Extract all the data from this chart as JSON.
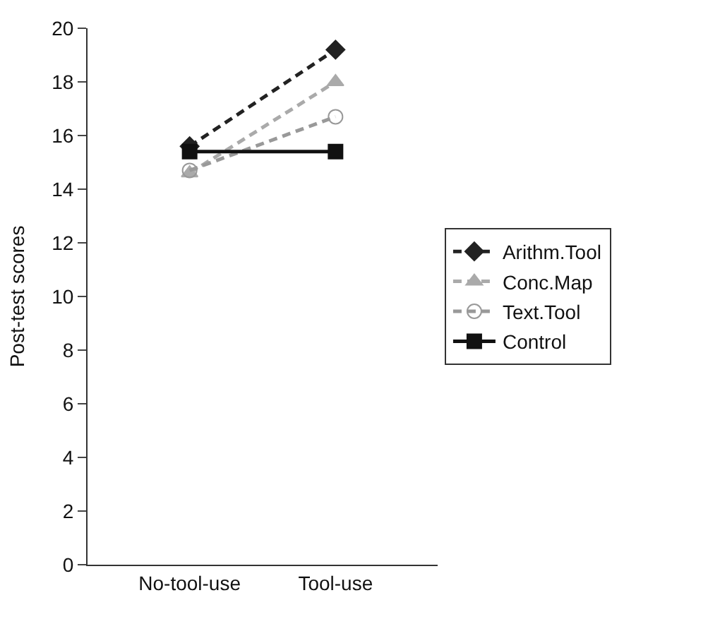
{
  "chart_data": {
    "type": "line",
    "ylabel": "Post-test scores",
    "categories": [
      "No-tool-use",
      "Tool-use"
    ],
    "ylim": [
      0,
      20
    ],
    "yticks": [
      0,
      2,
      4,
      6,
      8,
      10,
      12,
      14,
      16,
      18,
      20
    ],
    "legend": "right",
    "series": [
      {
        "name": "Arithm.Tool",
        "color": "#222222",
        "values": [
          15.6,
          19.2
        ],
        "marker": "diamond",
        "line_style": "dashed"
      },
      {
        "name": "Conc.Map",
        "color": "#aaaaaa",
        "values": [
          14.6,
          18.0
        ],
        "marker": "triangle",
        "line_style": "dashed"
      },
      {
        "name": "Text.Tool",
        "color": "#999999",
        "values": [
          14.7,
          16.7
        ],
        "marker": "circle",
        "line_style": "dashed"
      },
      {
        "name": "Control",
        "color": "#111111",
        "values": [
          15.4,
          15.4
        ],
        "marker": "square",
        "line_style": "solid"
      }
    ]
  }
}
